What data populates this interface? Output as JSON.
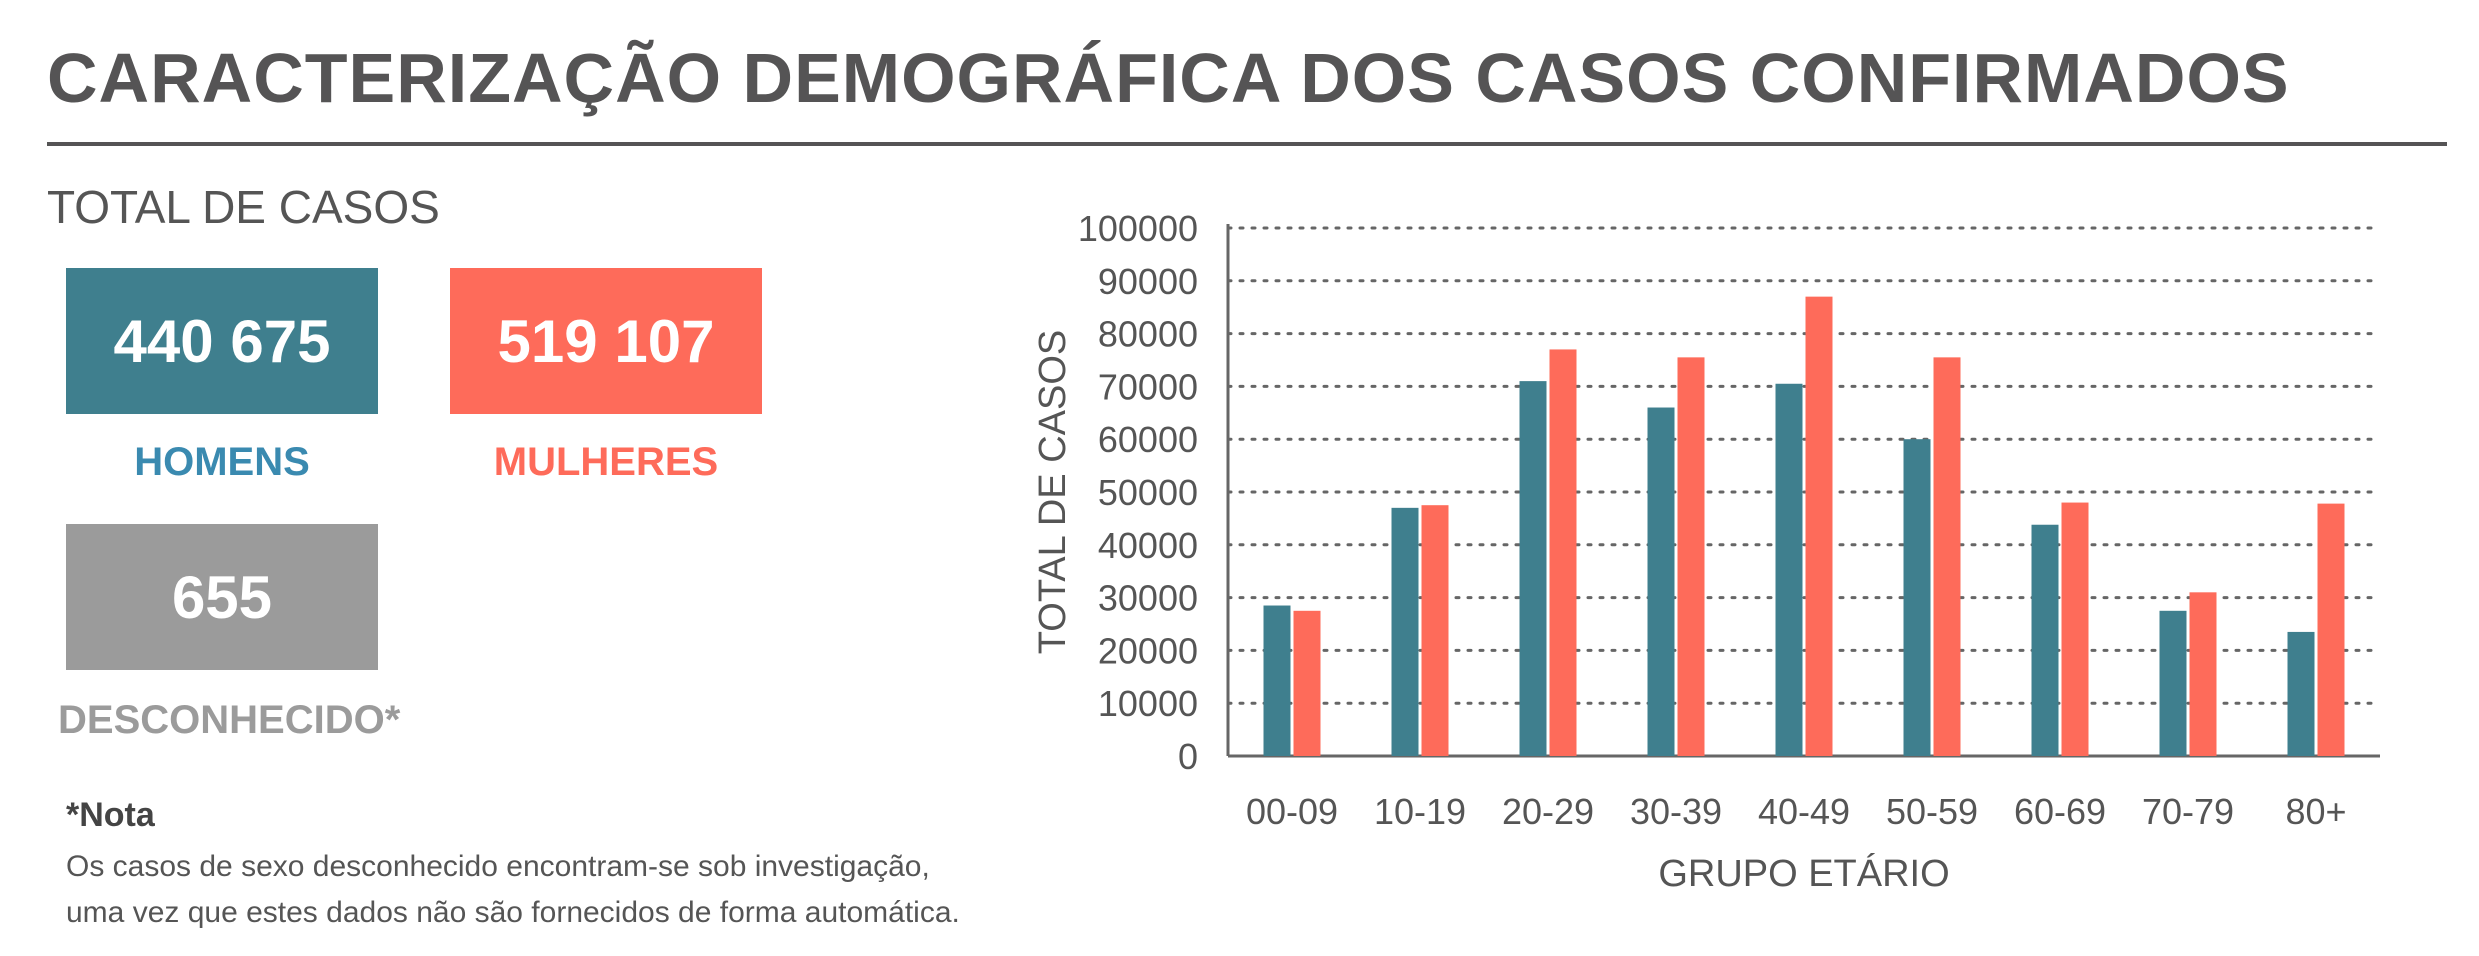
{
  "header": {
    "title": "CARACTERIZAÇÃO DEMOGRÁFICA DOS CASOS CONFIRMADOS",
    "subtitle": "TOTAL DE CASOS"
  },
  "totals": {
    "men": {
      "value": "440 675",
      "label": "HOMENS",
      "color": "#3f7f8e"
    },
    "women": {
      "value": "519 107",
      "label": "MULHERES",
      "color": "#fe6b5a"
    },
    "unknown": {
      "value": "655",
      "label": "DESCONHECIDO*",
      "color": "#9b9b9b"
    }
  },
  "note": {
    "title": "*Nota",
    "line1": "Os casos de sexo desconhecido encontram-se sob investigação,",
    "line2": "uma vez que estes dados não são fornecidos de forma automática."
  },
  "chart_data": {
    "type": "bar",
    "categories": [
      "00-09",
      "10-19",
      "20-29",
      "30-39",
      "40-49",
      "50-59",
      "60-69",
      "70-79",
      "80+"
    ],
    "series": [
      {
        "values": [
          28500,
          47000,
          71000,
          66000,
          70500,
          60000,
          43800,
          27500,
          23500
        ],
        "color": "#3f7f8e"
      },
      {
        "values": [
          27500,
          47500,
          77000,
          75500,
          87000,
          75500,
          48000,
          31000,
          47800
        ],
        "color": "#fe6b5a"
      }
    ],
    "xlabel": "GRUPO ETÁRIO",
    "ylabel": "TOTAL DE CASOS",
    "ylim": [
      0,
      100000
    ],
    "yticks": [
      0,
      10000,
      20000,
      30000,
      40000,
      50000,
      60000,
      70000,
      80000,
      90000,
      100000
    ],
    "grid": true,
    "legend": "none"
  }
}
